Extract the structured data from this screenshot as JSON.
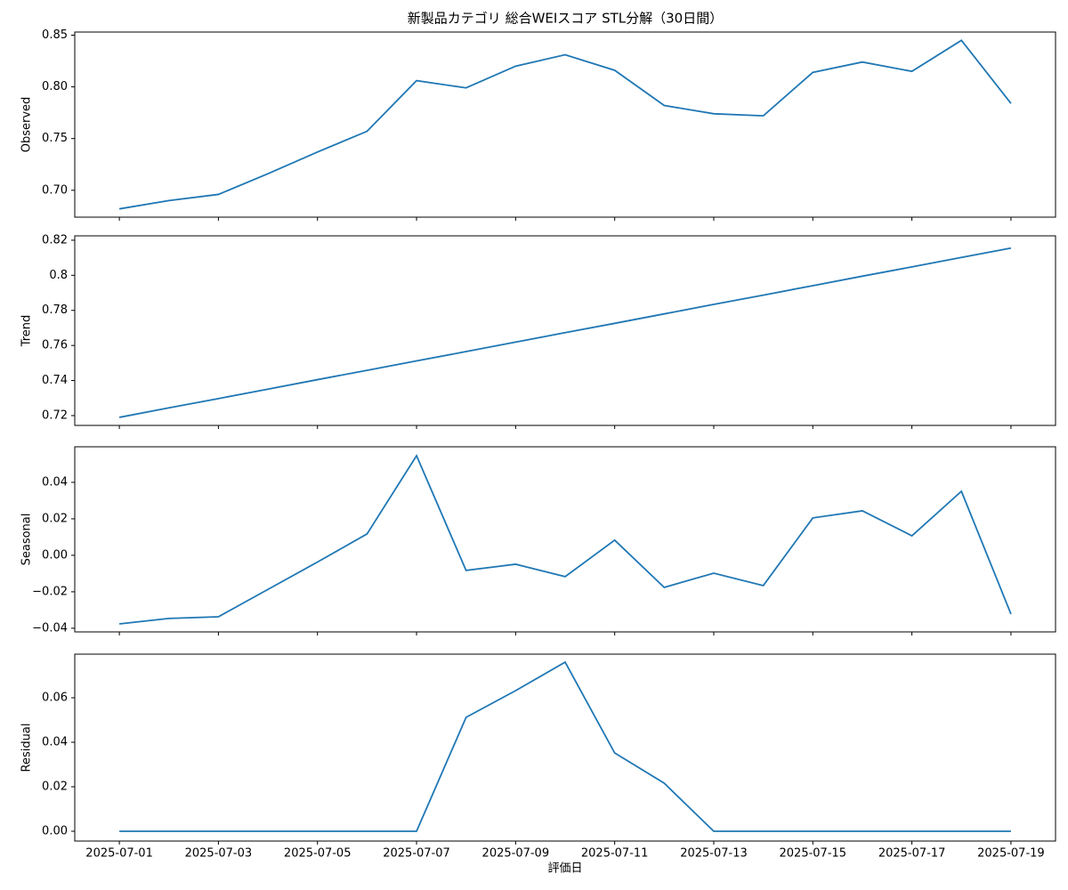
{
  "chart_data": [
    {
      "type": "line",
      "title": "新製品カテゴリ 総合WEIスコア STL分解（30日間）",
      "y_label": "Observed",
      "color": "#1f77b4",
      "x": [
        "2025-07-01",
        "2025-07-02",
        "2025-07-03",
        "2025-07-04",
        "2025-07-05",
        "2025-07-06",
        "2025-07-07",
        "2025-07-08",
        "2025-07-09",
        "2025-07-10",
        "2025-07-11",
        "2025-07-12",
        "2025-07-13",
        "2025-07-14",
        "2025-07-15",
        "2025-07-16",
        "2025-07-17",
        "2025-07-18",
        "2025-07-19"
      ],
      "values": [
        0.682,
        0.69,
        0.696,
        0.716,
        0.737,
        0.757,
        0.806,
        0.799,
        0.82,
        0.831,
        0.816,
        0.782,
        0.774,
        0.772,
        0.814,
        0.824,
        0.815,
        0.845,
        0.784
      ],
      "ylim": [
        0.674,
        0.853
      ],
      "yticks": [
        {
          "value": 0.7,
          "label": "0.70"
        },
        {
          "value": 0.75,
          "label": "0.75"
        },
        {
          "value": 0.8,
          "label": "0.80"
        },
        {
          "value": 0.85,
          "label": "0.85"
        }
      ],
      "xticks": [
        "2025-07-01",
        "2025-07-03",
        "2025-07-05",
        "2025-07-07",
        "2025-07-09",
        "2025-07-11",
        "2025-07-13",
        "2025-07-15",
        "2025-07-17",
        "2025-07-19"
      ]
    },
    {
      "type": "line",
      "y_label": "Trend",
      "color": "#1f77b4",
      "x": [
        "2025-07-01",
        "2025-07-02",
        "2025-07-03",
        "2025-07-04",
        "2025-07-05",
        "2025-07-06",
        "2025-07-07",
        "2025-07-08",
        "2025-07-09",
        "2025-07-10",
        "2025-07-11",
        "2025-07-12",
        "2025-07-13",
        "2025-07-14",
        "2025-07-15",
        "2025-07-16",
        "2025-07-17",
        "2025-07-18",
        "2025-07-19"
      ],
      "values": [
        0.719,
        0.7244,
        0.7297,
        0.7351,
        0.7405,
        0.7458,
        0.7512,
        0.7565,
        0.7619,
        0.7673,
        0.7726,
        0.778,
        0.7834,
        0.7887,
        0.7941,
        0.7995,
        0.8048,
        0.8102,
        0.8155
      ],
      "ylim": [
        0.7144,
        0.8225
      ],
      "yticks": [
        0.72,
        0.74,
        0.76,
        0.78,
        0.8,
        0.82
      ],
      "xticks": [
        "2025-07-01",
        "2025-07-03",
        "2025-07-05",
        "2025-07-07",
        "2025-07-09",
        "2025-07-11",
        "2025-07-13",
        "2025-07-15",
        "2025-07-17",
        "2025-07-19"
      ]
    },
    {
      "type": "line",
      "y_label": "Seasonal",
      "color": "#1f77b4",
      "x": [
        "2025-07-01",
        "2025-07-02",
        "2025-07-03",
        "2025-07-04",
        "2025-07-05",
        "2025-07-06",
        "2025-07-07",
        "2025-07-08",
        "2025-07-09",
        "2025-07-10",
        "2025-07-11",
        "2025-07-12",
        "2025-07-13",
        "2025-07-14",
        "2025-07-15",
        "2025-07-16",
        "2025-07-17",
        "2025-07-18",
        "2025-07-19"
      ],
      "values": [
        -0.0376,
        -0.0346,
        -0.0337,
        -0.0187,
        -0.0037,
        0.0117,
        0.0546,
        -0.0083,
        -0.0049,
        -0.0117,
        0.0083,
        -0.0176,
        -0.0098,
        -0.0166,
        0.0205,
        0.0244,
        0.0107,
        0.0351,
        -0.0322
      ],
      "ylim": [
        -0.042,
        0.0595
      ],
      "yticks": [
        {
          "value": -0.04,
          "label": "−0.04"
        },
        {
          "value": -0.02,
          "label": "−0.02"
        },
        {
          "value": 0,
          "label": "0.00"
        },
        {
          "value": 0.02,
          "label": "0.02"
        },
        {
          "value": 0.04,
          "label": "0.04"
        }
      ],
      "xticks": [
        "2025-07-01",
        "2025-07-03",
        "2025-07-05",
        "2025-07-07",
        "2025-07-09",
        "2025-07-11",
        "2025-07-13",
        "2025-07-15",
        "2025-07-17",
        "2025-07-19"
      ]
    },
    {
      "type": "line",
      "y_label": "Residual",
      "x_label": "評価日",
      "color": "#1f77b4",
      "x": [
        "2025-07-01",
        "2025-07-02",
        "2025-07-03",
        "2025-07-04",
        "2025-07-05",
        "2025-07-06",
        "2025-07-07",
        "2025-07-08",
        "2025-07-09",
        "2025-07-10",
        "2025-07-11",
        "2025-07-12",
        "2025-07-13",
        "2025-07-14",
        "2025-07-15",
        "2025-07-16",
        "2025-07-17",
        "2025-07-18",
        "2025-07-19"
      ],
      "values": [
        0,
        0,
        0,
        0,
        0,
        0,
        0,
        0.0512,
        0.0632,
        0.076,
        0.0352,
        0.0216,
        0,
        0,
        0,
        0,
        0,
        0,
        0
      ],
      "ylim": [
        -0.0044,
        0.0796
      ],
      "yticks": [
        {
          "value": 0,
          "label": "0.00"
        },
        {
          "value": 0.02,
          "label": "0.02"
        },
        {
          "value": 0.04,
          "label": "0.04"
        },
        {
          "value": 0.06,
          "label": "0.06"
        }
      ],
      "xticks": [
        "2025-07-01",
        "2025-07-03",
        "2025-07-05",
        "2025-07-07",
        "2025-07-09",
        "2025-07-11",
        "2025-07-13",
        "2025-07-15",
        "2025-07-17",
        "2025-07-19"
      ],
      "show_xtick_labels": true
    }
  ]
}
